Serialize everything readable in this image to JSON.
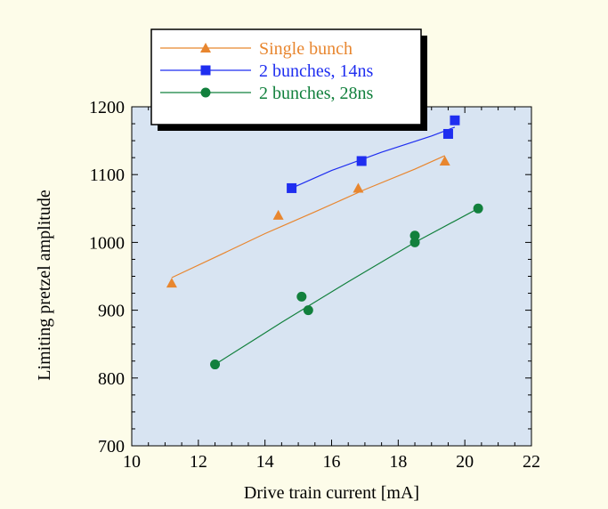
{
  "colors": {
    "page_bg": "#fdfce9",
    "plot_bg": "#d8e4f2",
    "axis": "#000000",
    "single_bunch": "#e8862f",
    "bunches_14ns": "#1f2ef0",
    "bunches_28ns": "#12803d"
  },
  "chart_data": {
    "type": "scatter",
    "xlabel": "Drive train current [mA]",
    "ylabel": "Limiting pretzel amplitude",
    "xlim": [
      10,
      22
    ],
    "ylim": [
      700,
      1200
    ],
    "xticks": [
      "10",
      "12",
      "14",
      "16",
      "18",
      "20",
      "22"
    ],
    "yticks": [
      "700",
      "800",
      "900",
      "1000",
      "1100",
      "1200"
    ],
    "grid": false,
    "legend_position": "top-left",
    "series": [
      {
        "name": "Single bunch",
        "marker": "triangle",
        "color": "#e8862f",
        "points": [
          [
            11.2,
            940
          ],
          [
            14.4,
            1040
          ],
          [
            16.8,
            1080
          ],
          [
            19.4,
            1120
          ]
        ],
        "fit": [
          [
            11.2,
            948
          ],
          [
            12.5,
            978
          ],
          [
            14.0,
            1013
          ],
          [
            15.5,
            1045
          ],
          [
            17.0,
            1078
          ],
          [
            18.5,
            1108
          ],
          [
            19.4,
            1128
          ]
        ]
      },
      {
        "name": "2 bunches, 14ns",
        "marker": "square",
        "color": "#1f2ef0",
        "points": [
          [
            14.8,
            1080
          ],
          [
            16.9,
            1120
          ],
          [
            19.5,
            1160
          ],
          [
            19.7,
            1180
          ]
        ],
        "fit": [
          [
            14.8,
            1080
          ],
          [
            16.0,
            1106
          ],
          [
            17.5,
            1133
          ],
          [
            19.0,
            1157
          ],
          [
            19.7,
            1170
          ]
        ]
      },
      {
        "name": "2 bunches, 28ns",
        "marker": "circle",
        "color": "#12803d",
        "points": [
          [
            12.5,
            820
          ],
          [
            15.1,
            920
          ],
          [
            15.3,
            900
          ],
          [
            18.5,
            1010
          ],
          [
            18.5,
            1000
          ],
          [
            20.4,
            1050
          ]
        ],
        "fit": [
          [
            12.5,
            820
          ],
          [
            14.5,
            882
          ],
          [
            16.5,
            942
          ],
          [
            18.5,
            1000
          ],
          [
            20.4,
            1050
          ]
        ]
      }
    ]
  }
}
